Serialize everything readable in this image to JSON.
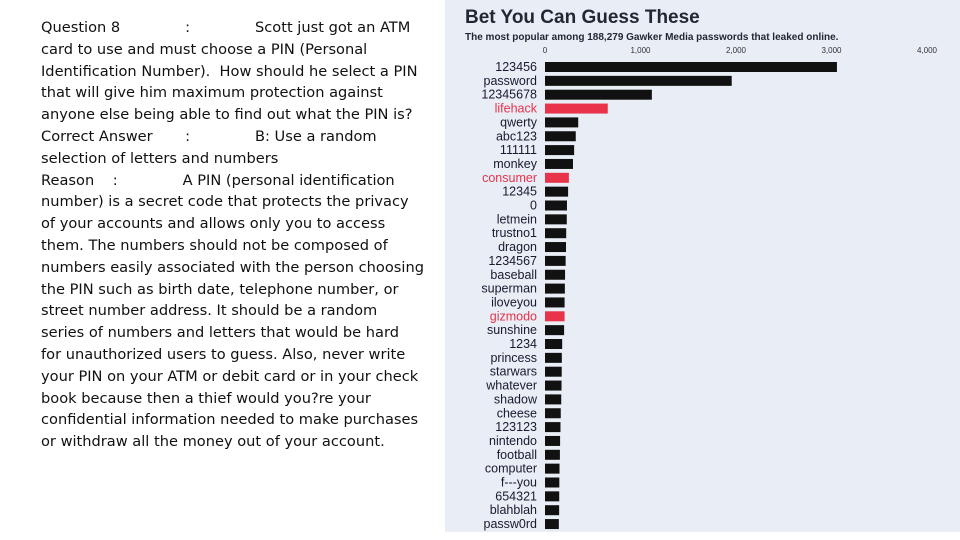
{
  "question_block": {
    "lines": [
      "Question 8              :              Scott just got an ATM",
      "card to use and must choose a PIN (Personal",
      "Identification Number).  How should he select a PIN",
      "that will give him maximum protection against",
      "anyone else being able to find out what the PIN is?",
      "Correct Answer       :              B: Use a random",
      "selection of letters and numbers",
      "Reason    :              A PIN (personal identification",
      "number) is a secret code that protects the privacy",
      "of your accounts and allows only you to access",
      "them. The numbers should not be composed of",
      "numbers easily associated with the person choosing",
      "the PIN such as birth date, telephone number, or",
      "street number address. It should be a random",
      "series of numbers and letters that would be hard",
      "for unauthorized users to guess. Also, never write",
      "your PIN on your ATM or debit card or in your check",
      "book because then a thief would you?re your",
      "confidential information needed to make purchases",
      "or withdraw all the money out of your account."
    ]
  },
  "chart_data": {
    "type": "bar",
    "orientation": "horizontal",
    "title": "Bet You Can Guess These",
    "subtitle": "The most popular among 188,279 Gawker Media passwords that leaked online.",
    "xlim": [
      0,
      4000
    ],
    "xticks": [
      0,
      1000,
      2000,
      3000,
      4000
    ],
    "xtick_labels": [
      "0",
      "1,000",
      "2,000",
      "3,000",
      "4,000"
    ],
    "categories": [
      "123456",
      "password",
      "12345678",
      "lifehack",
      "qwerty",
      "abc123",
      "111111",
      "monkey",
      "consumer",
      "12345",
      "0",
      "letmein",
      "trustno1",
      "dragon",
      "1234567",
      "baseball",
      "superman",
      "iloveyou",
      "gizmodo",
      "sunshine",
      "1234",
      "princess",
      "starwars",
      "whatever",
      "shadow",
      "cheese",
      "123123",
      "nintendo",
      "football",
      "computer",
      "f---you",
      "654321",
      "blahblah",
      "passw0rd"
    ],
    "values": [
      3057,
      1955,
      1119,
      657,
      348,
      322,
      305,
      293,
      250,
      242,
      230,
      228,
      222,
      220,
      216,
      210,
      208,
      205,
      205,
      200,
      180,
      176,
      175,
      173,
      170,
      165,
      162,
      158,
      156,
      152,
      150,
      149,
      148,
      145
    ],
    "highlighted": [
      "lifehack",
      "consumer",
      "gizmodo"
    ],
    "colors": {
      "default": "#111111",
      "highlight": "#e8334a",
      "background": "#e8edf6",
      "label_highlight": "#e8334a",
      "label_default": "#1a1a2e"
    }
  }
}
